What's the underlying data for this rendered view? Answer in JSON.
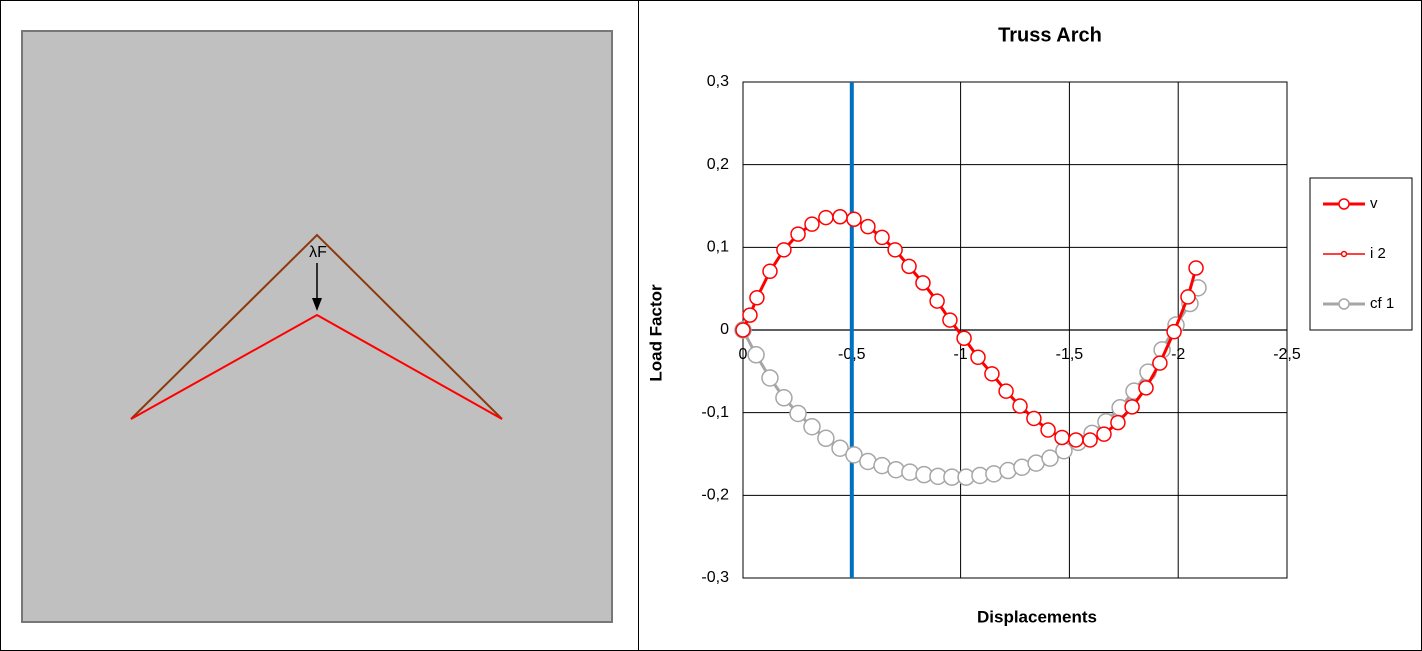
{
  "diagram": {
    "load_label": "λF"
  },
  "chart_data": {
    "type": "scatter",
    "title": "Truss Arch",
    "x_label": "Displacements",
    "y_label": "Load Factor",
    "xlim": [
      0,
      -2.5
    ],
    "ylim": [
      -0.3,
      0.3
    ],
    "xticks": [
      0,
      {
        "value": -0.5,
        "label": "-0,5"
      },
      {
        "value": -1,
        "label": "-1"
      },
      {
        "value": -1.5,
        "label": "-1,5"
      },
      {
        "value": -2,
        "label": "-2"
      },
      {
        "value": -2.5,
        "label": "-2,5"
      }
    ],
    "yticks": [
      {
        "value": -0.3,
        "label": "-0,3"
      },
      {
        "value": -0.2,
        "label": "-0,2"
      },
      {
        "value": -0.1,
        "label": "-0,1"
      },
      0,
      {
        "value": 0.1,
        "label": "0,1"
      },
      {
        "value": 0.2,
        "label": "0,2"
      },
      {
        "value": 0.3,
        "label": "0,3"
      }
    ],
    "grid": true,
    "legend": "right",
    "vline": {
      "x": -0.5,
      "color": "#0070c0"
    },
    "series": [
      {
        "name": "v",
        "color": "#ff0000",
        "line_width": 3,
        "marker_size": 7,
        "x": [
          0,
          -0.032,
          -0.064,
          -0.124,
          -0.188,
          -0.253,
          -0.317,
          -0.381,
          -0.446,
          -0.51,
          -0.574,
          -0.639,
          -0.699,
          -0.763,
          -0.827,
          -0.892,
          -0.951,
          -1.016,
          -1.08,
          -1.144,
          -1.209,
          -1.273,
          -1.337,
          -1.402,
          -1.466,
          -1.53,
          -1.595,
          -1.659,
          -1.723,
          -1.788,
          -1.852,
          -1.916,
          -1.981,
          -2.045,
          -2.082
        ],
        "values": [
          0,
          0.018,
          0.039,
          0.071,
          0.097,
          0.116,
          0.128,
          0.136,
          0.137,
          0.134,
          0.125,
          0.112,
          0.097,
          0.077,
          0.057,
          0.035,
          0.012,
          -0.01,
          -0.033,
          -0.053,
          -0.074,
          -0.092,
          -0.107,
          -0.121,
          -0.13,
          -0.133,
          -0.133,
          -0.126,
          -0.112,
          -0.093,
          -0.07,
          -0.04,
          -0.002,
          0.04,
          0.075
        ]
      },
      {
        "name": "i 2",
        "color": "#ff0000",
        "line_width": 1.5,
        "marker_size": 2.5,
        "x": [
          0,
          -0.032,
          -0.064,
          -0.124,
          -0.188,
          -0.253,
          -0.317,
          -0.381,
          -0.446,
          -0.51,
          -0.574,
          -0.639,
          -0.699,
          -0.763,
          -0.827,
          -0.892,
          -0.951,
          -1.016,
          -1.08,
          -1.144,
          -1.209,
          -1.273,
          -1.337,
          -1.402,
          -1.466,
          -1.53,
          -1.595,
          -1.659,
          -1.723,
          -1.788,
          -1.852,
          -1.916,
          -1.981,
          -2.045,
          -2.082
        ],
        "values": [
          0,
          0.018,
          0.039,
          0.071,
          0.097,
          0.116,
          0.128,
          0.136,
          0.137,
          0.134,
          0.125,
          0.112,
          0.097,
          0.077,
          0.057,
          0.035,
          0.012,
          -0.01,
          -0.033,
          -0.053,
          -0.074,
          -0.092,
          -0.107,
          -0.121,
          -0.13,
          -0.133,
          -0.133,
          -0.126,
          -0.112,
          -0.093,
          -0.07,
          -0.04,
          -0.002,
          0.04,
          0.075
        ]
      },
      {
        "name": "cf 1",
        "color": "#a6a6a6",
        "line_width": 3,
        "marker_size": 8,
        "x": [
          0,
          -0.06,
          -0.124,
          -0.188,
          -0.253,
          -0.317,
          -0.381,
          -0.446,
          -0.51,
          -0.574,
          -0.639,
          -0.703,
          -0.767,
          -0.832,
          -0.896,
          -0.96,
          -1.025,
          -1.089,
          -1.153,
          -1.218,
          -1.282,
          -1.347,
          -1.411,
          -1.475,
          -1.54,
          -1.604,
          -1.668,
          -1.733,
          -1.797,
          -1.861,
          -1.926,
          -1.99,
          -2.054,
          -2.091
        ],
        "values": [
          0,
          -0.03,
          -0.058,
          -0.082,
          -0.101,
          -0.117,
          -0.131,
          -0.143,
          -0.151,
          -0.159,
          -0.164,
          -0.169,
          -0.172,
          -0.175,
          -0.177,
          -0.178,
          -0.178,
          -0.176,
          -0.174,
          -0.17,
          -0.166,
          -0.161,
          -0.155,
          -0.146,
          -0.136,
          -0.125,
          -0.111,
          -0.094,
          -0.074,
          -0.051,
          -0.024,
          0.006,
          0.032,
          0.051
        ]
      }
    ]
  }
}
